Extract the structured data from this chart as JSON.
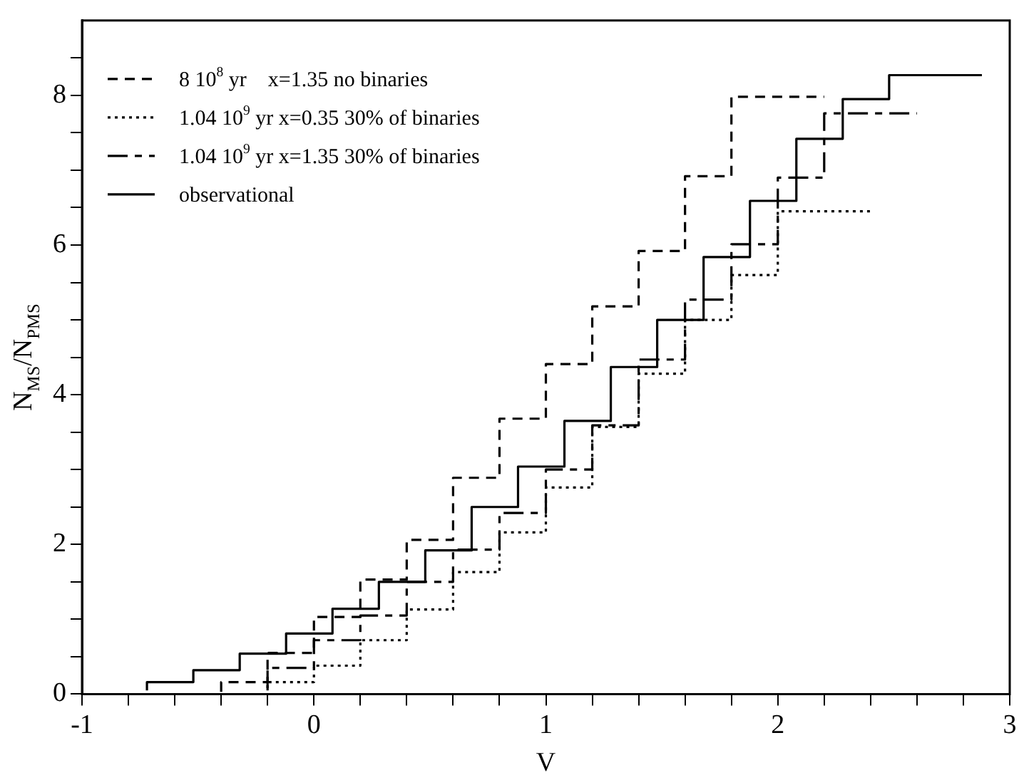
{
  "chart_data": {
    "type": "step",
    "xlabel": "V",
    "ylabel": "N$_{MS}$/N$_{PMS}$",
    "xlim": [
      -1,
      3
    ],
    "ylim": [
      0,
      9
    ],
    "xticks": [
      -1,
      {
        "value": -0.8,
        "label": null
      },
      {
        "value": -0.6,
        "label": null
      },
      {
        "value": -0.4,
        "label": null
      },
      {
        "value": -0.2,
        "label": null
      },
      0,
      {
        "value": 0.2,
        "label": null
      },
      {
        "value": 0.4,
        "label": null
      },
      {
        "value": 0.6,
        "label": null
      },
      {
        "value": 0.8,
        "label": null
      },
      1,
      {
        "value": 1.2,
        "label": null
      },
      {
        "value": 1.4,
        "label": null
      },
      {
        "value": 1.6,
        "label": null
      },
      {
        "value": 1.8,
        "label": null
      },
      2,
      {
        "value": 2.2,
        "label": null
      },
      {
        "value": 2.4,
        "label": null
      },
      {
        "value": 2.6,
        "label": null
      },
      {
        "value": 2.8,
        "label": null
      },
      3
    ],
    "yticks": [
      0,
      {
        "value": 0.5,
        "label": null
      },
      {
        "value": 1,
        "label": null
      },
      {
        "value": 1.5,
        "label": null
      },
      2,
      {
        "value": 2.5,
        "label": null
      },
      {
        "value": 3,
        "label": null
      },
      {
        "value": 3.5,
        "label": null
      },
      4,
      {
        "value": 4.5,
        "label": null
      },
      {
        "value": 5,
        "label": null
      },
      {
        "value": 5.5,
        "label": null
      },
      6,
      {
        "value": 6.5,
        "label": null
      },
      {
        "value": 7,
        "label": null
      },
      {
        "value": 7.5,
        "label": null
      },
      8,
      {
        "value": 8.5,
        "label": null
      }
    ],
    "grid": false,
    "legend": "top left",
    "series": [
      {
        "name": "8 10$^{8}$ yr    x=1.35 no binaries",
        "color": "#000000",
        "line_style": "dashed",
        "x": [
          -0.4,
          -0.2,
          0,
          0.2,
          0.4,
          0.6,
          0.8,
          1,
          1.2,
          1.4,
          1.6,
          1.8,
          2,
          2.2
        ],
        "values": [
          0.03,
          0.16,
          0.55,
          1.03,
          1.53,
          2.06,
          2.89,
          3.68,
          4.41,
          5.18,
          5.92,
          6.92,
          7.98,
          7.98
        ]
      },
      {
        "name": "1.04 10$^{9}$ yr x=0.35 30% of binaries",
        "color": "#000000",
        "line_style": "dotted",
        "x": [
          -0.2,
          0,
          0.2,
          0.4,
          0.6,
          0.8,
          1,
          1.2,
          1.4,
          1.6,
          1.8,
          2,
          2.2,
          2.4
        ],
        "values": [
          0.08,
          0.16,
          0.38,
          0.72,
          1.13,
          1.63,
          2.16,
          2.76,
          3.57,
          4.28,
          5.0,
          5.6,
          6.45,
          6.45
        ]
      },
      {
        "name": "1.04 10$^{9}$ yr x=1.35 30% of binaries",
        "color": "#000000",
        "line_style": "dashed",
        "x": [
          -0.2,
          0,
          0.2,
          0.4,
          0.6,
          0.8,
          1,
          1.2,
          1.4,
          1.6,
          1.8,
          2,
          2.2,
          2.4,
          2.6
        ],
        "values": [
          0.05,
          0.35,
          0.72,
          1.05,
          1.5,
          1.93,
          2.42,
          3.0,
          3.59,
          4.47,
          5.27,
          6.01,
          6.9,
          7.76,
          7.76
        ]
      },
      {
        "name": "observational",
        "color": "#000000",
        "line_style": "solid",
        "x": [
          -0.72,
          -0.52,
          -0.32,
          -0.12,
          0.08,
          0.28,
          0.48,
          0.68,
          0.88,
          1.08,
          1.28,
          1.48,
          1.68,
          1.88,
          2.08,
          2.28,
          2.48,
          2.68,
          2.88
        ],
        "values": [
          0.05,
          0.16,
          0.32,
          0.54,
          0.81,
          1.14,
          1.5,
          1.92,
          2.5,
          3.04,
          3.65,
          4.37,
          5.0,
          5.84,
          6.59,
          7.42,
          7.95,
          8.27,
          8.27
        ]
      }
    ]
  }
}
